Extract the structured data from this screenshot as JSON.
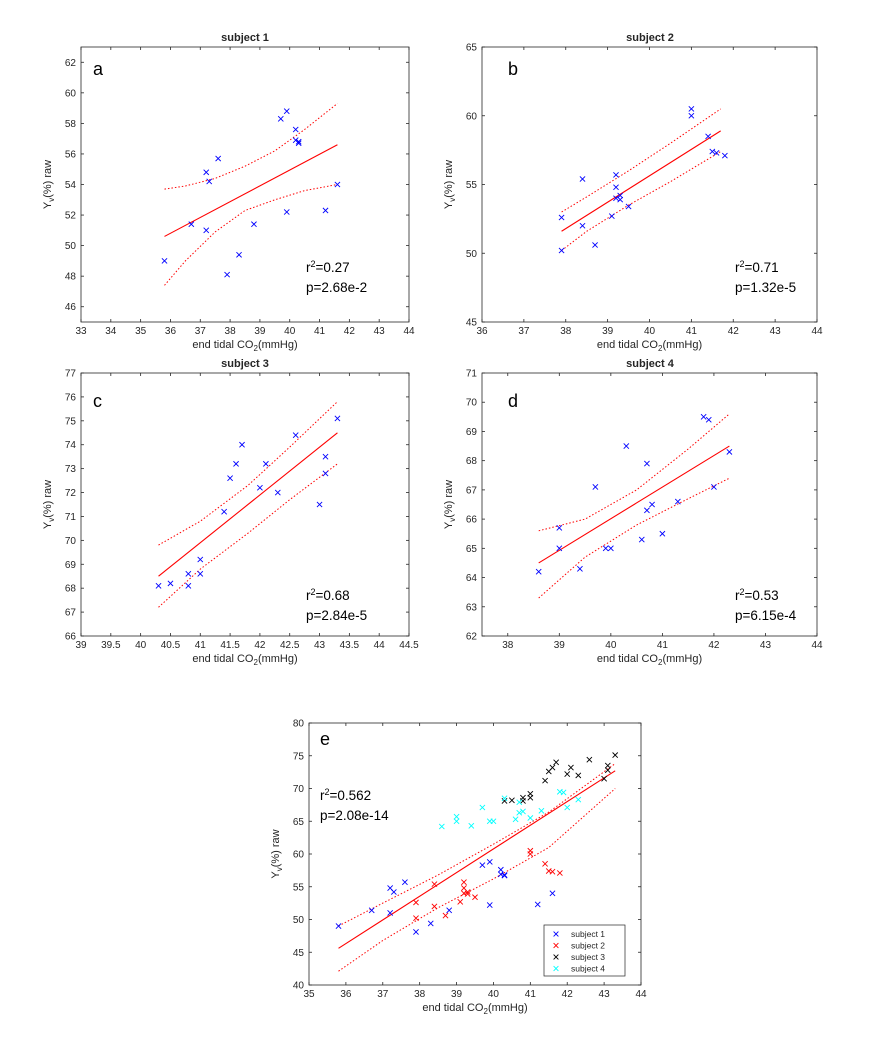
{
  "figure": {
    "background": "#ffffff",
    "axis_color": "#262626",
    "grid": false
  },
  "colors": {
    "point": "#0000ff",
    "fit": "#ff0000",
    "ci": "#ff0000",
    "subject1": "#0000ff",
    "subject2": "#ff0000",
    "subject3": "#000000",
    "subject4": "#00ffff"
  },
  "chart_data": [
    {
      "type": "scatter",
      "title": "subject 1",
      "panel_letter": "a",
      "xlabel_main": "end tidal CO",
      "xlabel_sub": "2",
      "xlabel_tail": "(mmHg)",
      "ylabel_main": "Y",
      "ylabel_sub": "v",
      "ylabel_tail": "(%) raw",
      "xlim": [
        33,
        44
      ],
      "ylim": [
        45,
        63
      ],
      "xticks": [
        "33",
        "34",
        "35",
        "36",
        "37",
        "38",
        "39",
        "40",
        "41",
        "42",
        "43",
        "44"
      ],
      "yticks": [
        "46",
        "48",
        "50",
        "52",
        "54",
        "56",
        "58",
        "60",
        "62"
      ],
      "stats": {
        "r2_label": "r",
        "r2_sup": "2",
        "r2_value": "=0.27",
        "p": "p=2.68e-2"
      },
      "series": [
        {
          "name": "data",
          "color": "#0000ff",
          "x": [
            35.8,
            36.7,
            37.2,
            37.2,
            37.3,
            37.6,
            37.9,
            38.3,
            38.8,
            39.7,
            39.9,
            39.9,
            40.2,
            40.2,
            40.3,
            40.3,
            41.2,
            41.6
          ],
          "y": [
            49.0,
            51.4,
            54.8,
            51.0,
            54.2,
            55.7,
            48.1,
            49.4,
            51.4,
            58.3,
            58.8,
            52.2,
            56.9,
            57.6,
            56.7,
            56.8,
            52.3,
            54.0
          ]
        }
      ],
      "fit": {
        "x": [
          35.8,
          41.6
        ],
        "y": [
          50.6,
          56.6
        ]
      },
      "ci_upper": {
        "x": [
          35.8,
          36.5,
          37.5,
          38.5,
          39.5,
          40.5,
          41.6
        ],
        "y": [
          53.7,
          53.9,
          54.4,
          55.2,
          56.2,
          57.6,
          59.3
        ]
      },
      "ci_lower": {
        "x": [
          35.8,
          36.5,
          37.5,
          38.5,
          39.5,
          40.5,
          41.6
        ],
        "y": [
          47.4,
          49.0,
          50.9,
          52.3,
          53.0,
          53.6,
          54.0
        ]
      }
    },
    {
      "type": "scatter",
      "title": "subject 2",
      "panel_letter": "b",
      "xlabel_main": "end tidal CO",
      "xlabel_sub": "2",
      "xlabel_tail": "(mmHg)",
      "ylabel_main": "Y",
      "ylabel_sub": "v",
      "ylabel_tail": "(%) raw",
      "xlim": [
        36,
        44
      ],
      "ylim": [
        45,
        65
      ],
      "xticks": [
        "36",
        "37",
        "38",
        "39",
        "40",
        "41",
        "42",
        "43",
        "44"
      ],
      "yticks": [
        "45",
        "50",
        "55",
        "60",
        "65"
      ],
      "stats": {
        "r2_label": "r",
        "r2_sup": "2",
        "r2_value": "=0.71",
        "p": "p=1.32e-5"
      },
      "series": [
        {
          "name": "data",
          "color": "#ff0000",
          "x": [
            37.9,
            37.9,
            38.4,
            38.4,
            38.7,
            39.1,
            39.2,
            39.2,
            39.2,
            39.3,
            39.3,
            39.5,
            41.0,
            41.0,
            41.4,
            41.5,
            41.6,
            41.8
          ],
          "y": [
            50.2,
            52.6,
            52.0,
            55.4,
            50.6,
            52.7,
            54.8,
            55.7,
            54.0,
            54.2,
            53.9,
            53.4,
            60.5,
            60.0,
            58.5,
            57.4,
            57.3,
            57.1
          ]
        }
      ],
      "fit": {
        "x": [
          37.9,
          41.7
        ],
        "y": [
          51.6,
          58.9
        ]
      },
      "ci_upper": {
        "x": [
          37.9,
          38.5,
          39.5,
          40.5,
          41.7
        ],
        "y": [
          53.0,
          54.1,
          56.0,
          58.0,
          60.5
        ]
      },
      "ci_lower": {
        "x": [
          37.9,
          38.5,
          39.5,
          40.5,
          41.7
        ],
        "y": [
          50.2,
          51.6,
          53.5,
          55.2,
          57.4
        ]
      }
    },
    {
      "type": "scatter",
      "title": "subject 3",
      "panel_letter": "c",
      "xlabel_main": "end tidal CO",
      "xlabel_sub": "2",
      "xlabel_tail": "(mmHg)",
      "ylabel_main": "Y",
      "ylabel_sub": "v",
      "ylabel_tail": "(%) raw",
      "xlim": [
        39,
        44.5
      ],
      "ylim": [
        66,
        77
      ],
      "xticks": [
        "39",
        "39.5",
        "40",
        "40.5",
        "41",
        "41.5",
        "42",
        "42.5",
        "43",
        "43.5",
        "44",
        "44.5"
      ],
      "yticks": [
        "66",
        "67",
        "68",
        "69",
        "70",
        "71",
        "72",
        "73",
        "74",
        "75",
        "76",
        "77"
      ],
      "stats": {
        "r2_label": "r",
        "r2_sup": "2",
        "r2_value": "=0.68",
        "p": "p=2.84e-5"
      },
      "series": [
        {
          "name": "data",
          "color": "#000000",
          "x": [
            40.3,
            40.5,
            40.8,
            40.8,
            41.0,
            41.0,
            41.4,
            41.5,
            41.6,
            41.7,
            42.0,
            42.1,
            42.3,
            42.6,
            43.0,
            43.1,
            43.1,
            43.3
          ],
          "y": [
            68.1,
            68.2,
            68.1,
            68.6,
            68.6,
            69.2,
            71.2,
            72.6,
            73.2,
            74.0,
            72.2,
            73.2,
            72.0,
            74.4,
            71.5,
            72.8,
            73.5,
            75.1
          ]
        }
      ],
      "fit": {
        "x": [
          40.3,
          43.3
        ],
        "y": [
          68.5,
          74.5
        ]
      },
      "ci_upper": {
        "x": [
          40.3,
          41.0,
          41.8,
          42.5,
          43.3
        ],
        "y": [
          69.8,
          70.8,
          72.3,
          73.9,
          75.8
        ]
      },
      "ci_lower": {
        "x": [
          40.3,
          41.0,
          41.8,
          42.5,
          43.3
        ],
        "y": [
          67.2,
          68.8,
          70.3,
          71.7,
          73.2
        ]
      }
    },
    {
      "type": "scatter",
      "title": "subject 4",
      "panel_letter": "d",
      "xlabel_main": "end tidal CO",
      "xlabel_sub": "2",
      "xlabel_tail": "(mmHg)",
      "ylabel_main": "Y",
      "ylabel_sub": "v",
      "ylabel_tail": "(%) raw",
      "xlim": [
        37.5,
        44
      ],
      "ylim": [
        62,
        71
      ],
      "xticks": [
        "38",
        "39",
        "40",
        "41",
        "42",
        "43",
        "44"
      ],
      "yticks": [
        "62",
        "63",
        "64",
        "65",
        "66",
        "67",
        "68",
        "69",
        "70",
        "71"
      ],
      "stats": {
        "r2_label": "r",
        "r2_sup": "2",
        "r2_value": "=0.53",
        "p": "p=6.15e-4"
      },
      "series": [
        {
          "name": "data",
          "color": "#00ffff",
          "x": [
            38.6,
            39.0,
            39.0,
            39.4,
            39.7,
            39.9,
            40.0,
            40.3,
            40.6,
            40.7,
            40.7,
            40.8,
            41.0,
            41.3,
            41.8,
            41.9,
            42.0,
            42.3
          ],
          "y": [
            64.2,
            65.7,
            65.0,
            64.3,
            67.1,
            65.0,
            65.0,
            68.5,
            65.3,
            67.9,
            66.3,
            66.5,
            65.5,
            66.6,
            69.5,
            69.4,
            67.1,
            68.3
          ]
        }
      ],
      "fit": {
        "x": [
          38.6,
          42.3
        ],
        "y": [
          64.5,
          68.5
        ]
      },
      "ci_upper": {
        "x": [
          38.6,
          39.5,
          40.5,
          41.5,
          42.3
        ],
        "y": [
          65.6,
          66.0,
          67.0,
          68.4,
          69.6
        ]
      },
      "ci_lower": {
        "x": [
          38.6,
          39.5,
          40.5,
          41.5,
          42.3
        ],
        "y": [
          63.3,
          64.7,
          65.8,
          66.7,
          67.4
        ]
      }
    },
    {
      "type": "scatter",
      "title": "",
      "panel_letter": "e",
      "xlabel_main": "end tidal CO",
      "xlabel_sub": "2",
      "xlabel_tail": "(mmHg)",
      "ylabel_main": "Y",
      "ylabel_sub": "v",
      "ylabel_tail": "(%) raw",
      "xlim": [
        35,
        44
      ],
      "ylim": [
        40,
        80
      ],
      "xticks": [
        "35",
        "36",
        "37",
        "38",
        "39",
        "40",
        "41",
        "42",
        "43",
        "44"
      ],
      "yticks": [
        "40",
        "45",
        "50",
        "55",
        "60",
        "65",
        "70",
        "75",
        "80"
      ],
      "stats": {
        "r2_label": "r",
        "r2_sup": "2",
        "r2_value": "=0.562",
        "p": "p=2.08e-14"
      },
      "legend_position": "bottom-right",
      "series": [
        {
          "name": "subject 1",
          "color": "#0000ff",
          "x": [
            35.8,
            36.7,
            37.2,
            37.2,
            37.3,
            37.6,
            37.9,
            38.3,
            38.8,
            39.7,
            39.9,
            39.9,
            40.2,
            40.2,
            40.3,
            40.3,
            41.2,
            41.6
          ],
          "y": [
            49.0,
            51.4,
            54.8,
            51.0,
            54.2,
            55.7,
            48.1,
            49.4,
            51.4,
            58.3,
            58.8,
            52.2,
            56.9,
            57.6,
            56.7,
            56.8,
            52.3,
            54.0
          ]
        },
        {
          "name": "subject 2",
          "color": "#ff0000",
          "x": [
            37.9,
            37.9,
            38.4,
            38.4,
            38.7,
            39.1,
            39.2,
            39.2,
            39.2,
            39.3,
            39.3,
            39.5,
            41.0,
            41.0,
            41.4,
            41.5,
            41.6,
            41.8
          ],
          "y": [
            50.2,
            52.6,
            52.0,
            55.4,
            50.6,
            52.7,
            54.8,
            55.7,
            54.0,
            54.2,
            53.9,
            53.4,
            60.5,
            60.0,
            58.5,
            57.4,
            57.3,
            57.1
          ]
        },
        {
          "name": "subject 3",
          "color": "#000000",
          "x": [
            40.3,
            40.5,
            40.8,
            40.8,
            41.0,
            41.0,
            41.4,
            41.5,
            41.6,
            41.7,
            42.0,
            42.1,
            42.3,
            42.6,
            43.0,
            43.1,
            43.1,
            43.3
          ],
          "y": [
            68.1,
            68.2,
            68.1,
            68.6,
            68.6,
            69.2,
            71.2,
            72.6,
            73.2,
            74.0,
            72.2,
            73.2,
            72.0,
            74.4,
            71.5,
            72.8,
            73.5,
            75.1
          ]
        },
        {
          "name": "subject 4",
          "color": "#00ffff",
          "x": [
            38.6,
            39.0,
            39.0,
            39.4,
            39.7,
            39.9,
            40.0,
            40.3,
            40.6,
            40.7,
            40.7,
            40.8,
            41.0,
            41.3,
            41.8,
            41.9,
            42.0,
            42.3
          ],
          "y": [
            64.2,
            65.7,
            65.0,
            64.3,
            67.1,
            65.0,
            65.0,
            68.5,
            65.3,
            67.9,
            66.3,
            66.5,
            65.5,
            66.6,
            69.5,
            69.4,
            67.1,
            68.3
          ]
        }
      ],
      "fit": {
        "x": [
          35.8,
          43.3
        ],
        "y": [
          45.6,
          72.7
        ]
      },
      "ci_upper": {
        "x": [
          35.8,
          37.0,
          38.5,
          40.0,
          41.5,
          43.3
        ],
        "y": [
          49.0,
          52.5,
          56.8,
          61.5,
          66.4,
          73.8
        ]
      },
      "ci_lower": {
        "x": [
          35.8,
          37.0,
          38.5,
          40.0,
          41.5,
          43.3
        ],
        "y": [
          42.1,
          46.8,
          51.8,
          56.2,
          61.0,
          70.0
        ]
      }
    }
  ]
}
